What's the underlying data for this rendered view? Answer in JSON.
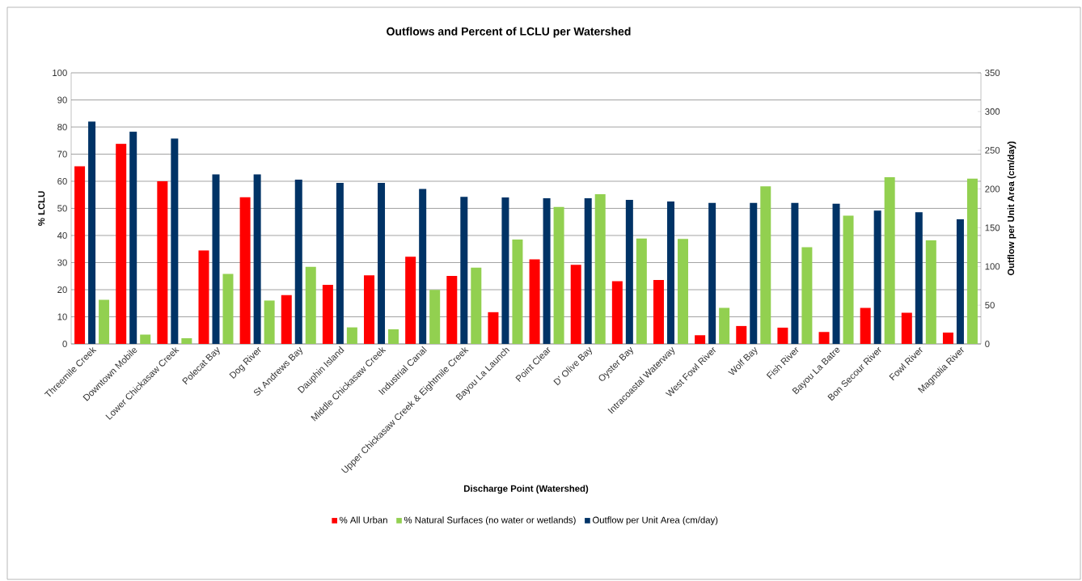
{
  "chart_data": {
    "type": "bar",
    "title": "Outflows and  Percent of LCLU per Watershed",
    "xlabel": "Discharge Point (Watershed)",
    "ylabel": "% LCLU",
    "y2label": "Outflow per Unit Area (cm/day)",
    "categories": [
      "Threemile Creek",
      "Downtown Mobile",
      "Lower Chickasaw Creek",
      "Polecat Bay",
      "Dog River",
      "St Andrews Bay",
      "Dauphin Island",
      "Middle Chickasaw Creek",
      "Industrial Canal",
      "Upper Chickasaw Creek & Eightmile Creek",
      "Bayou La Launch",
      "Point Clear",
      "D' Olive Bay",
      "Oyster Bay",
      "Intracoastal Waterway",
      "West Fowl River",
      "Wolf Bay",
      "Fish River",
      "Bayou La Batre",
      "Bon Secour River",
      "Fowl River",
      "Magnolia River"
    ],
    "series": [
      {
        "name": "% All Urban",
        "color": "#ff0000",
        "values": [
          65.5,
          73.8,
          60,
          34.5,
          54.1,
          18,
          21.8,
          25.3,
          32.2,
          25.1,
          11.7,
          31.2,
          29.2,
          23.1,
          23.6,
          3.2,
          6.6,
          6,
          4.4,
          13.3,
          11.5,
          4.2
        ]
      },
      {
        "name": "% Natural Surfaces (no water or wetlands)",
        "color": "#92d050",
        "values": [
          16.3,
          3.4,
          2.1,
          25.8,
          16,
          28.4,
          6.1,
          5.4,
          19.9,
          28.1,
          38.5,
          50.5,
          55.2,
          38.9,
          38.7,
          13.3,
          58.1,
          35.7,
          47.3,
          61.5,
          38.2,
          61.0
        ]
      },
      {
        "name": "Outflow per Unit Area (cm/day)",
        "color": "#003366",
        "axis": "y2",
        "values": [
          287,
          274,
          265,
          219,
          219,
          212,
          208,
          208,
          200,
          190,
          189,
          188,
          188,
          186,
          184,
          182,
          182,
          182,
          181,
          172,
          170,
          161
        ]
      }
    ],
    "ylim": [
      0,
      100
    ],
    "yticks": [
      0,
      10,
      20,
      30,
      40,
      50,
      60,
      70,
      80,
      90,
      100
    ],
    "y2lim": [
      0,
      350
    ],
    "y2ticks": [
      0,
      50,
      100,
      150,
      200,
      250,
      300,
      350
    ],
    "grid": "y",
    "legend": "bottom"
  }
}
